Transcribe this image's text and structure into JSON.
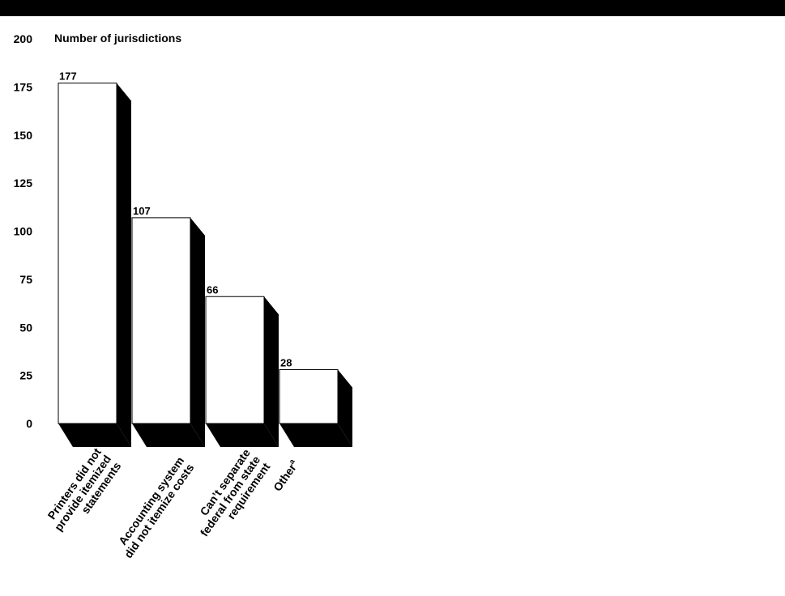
{
  "chart_data": {
    "type": "bar",
    "ylabel": "Number of jurisdictions",
    "ylim": [
      0,
      200
    ],
    "yticks": [
      0,
      25,
      50,
      75,
      100,
      125,
      150,
      175,
      200
    ],
    "categories": [
      [
        "Printers did not",
        "provide itemized",
        "statements"
      ],
      [
        "Accounting system",
        "did not itemize costs"
      ],
      [
        "Can’t separate",
        "federal from state",
        "requirement"
      ],
      [
        "Other"
      ]
    ],
    "category_superscripts": [
      "",
      "",
      "",
      "a"
    ],
    "values": [
      177,
      107,
      66,
      28
    ],
    "data_labels": [
      "177",
      "107",
      "66",
      "28"
    ],
    "grid": false,
    "legend": "none",
    "colors": {
      "bar_face": "#ffffff",
      "bar_side": "#000000",
      "text": "#000000",
      "top_band": "#000000"
    }
  }
}
